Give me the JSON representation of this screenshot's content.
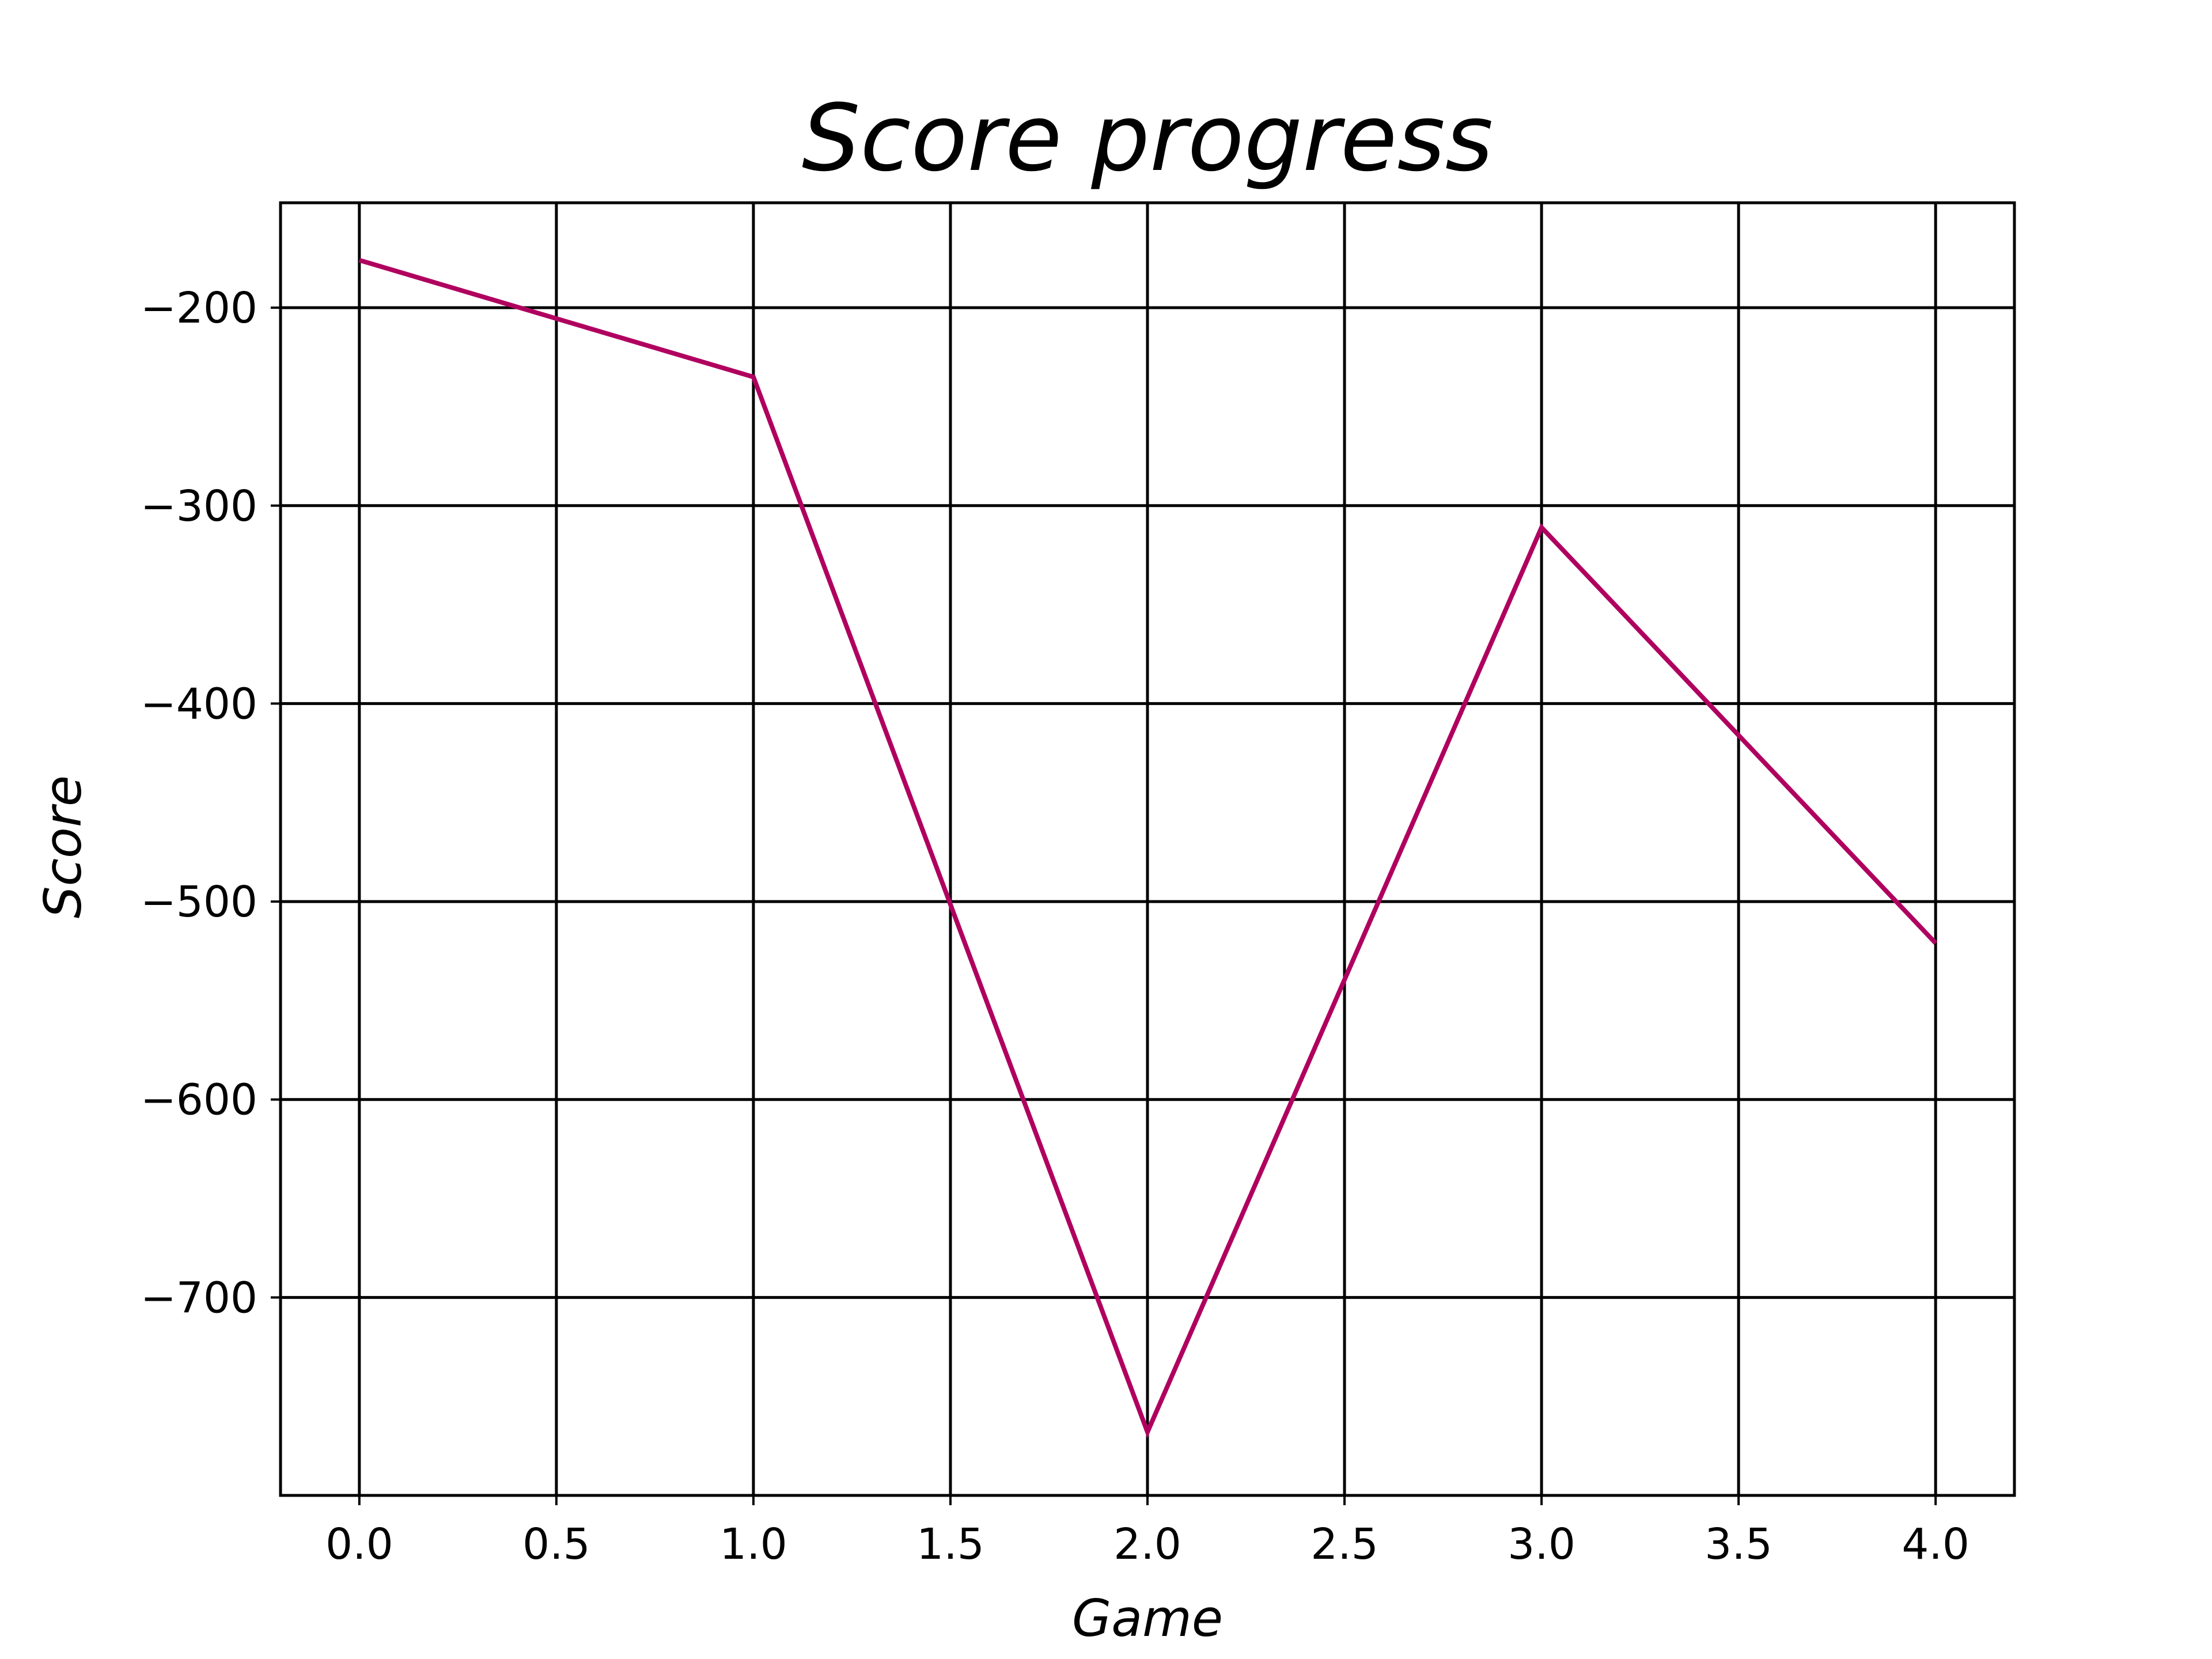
{
  "chart_data": {
    "type": "line",
    "title": "Score progress",
    "xlabel": "Game",
    "ylabel": "Score",
    "xlim": [
      -0.2,
      4.2
    ],
    "ylim": [
      -800,
      -147
    ],
    "xticks": [
      0.0,
      0.5,
      1.0,
      1.5,
      2.0,
      2.5,
      3.0,
      3.5,
      4.0
    ],
    "xtick_labels": [
      "0.0",
      "0.5",
      "1.0",
      "1.5",
      "2.0",
      "2.5",
      "3.0",
      "3.5",
      "4.0"
    ],
    "yticks": [
      -700,
      -600,
      -500,
      -400,
      -300,
      -200
    ],
    "ytick_labels": [
      "−700",
      "−600",
      "−500",
      "−400",
      "−300",
      "−200"
    ],
    "grid": true,
    "grid_color": "#000000",
    "series": [
      {
        "color": "#b0005f",
        "x": [
          0,
          1,
          2,
          3,
          4
        ],
        "y": [
          -176,
          -235,
          -768,
          -311,
          -521
        ]
      }
    ]
  }
}
